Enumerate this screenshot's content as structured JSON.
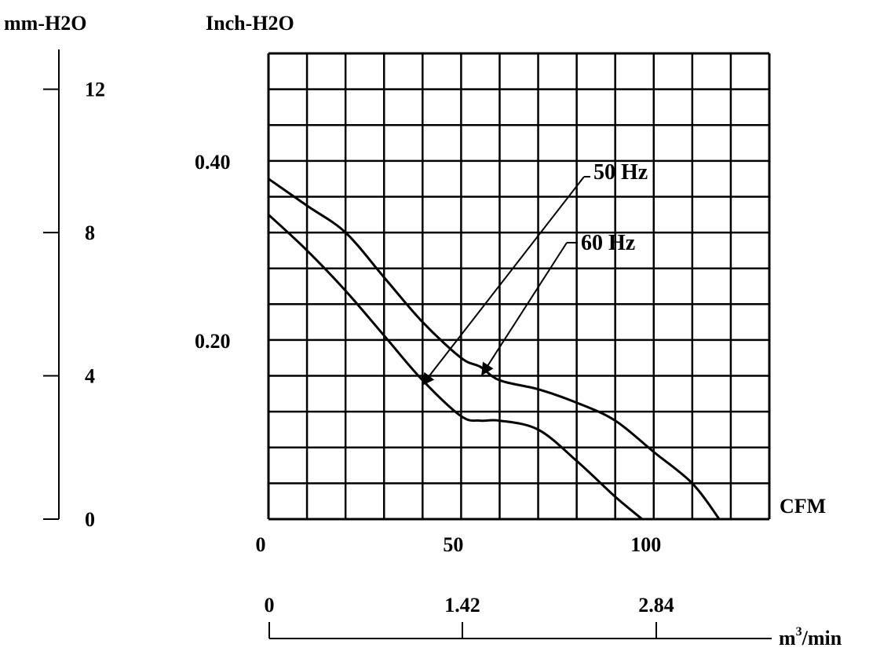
{
  "chart_data": {
    "type": "line",
    "axes": {
      "y_left_outer": {
        "label": "mm-H2O",
        "ticks": [
          "12",
          "8",
          "4",
          "0"
        ],
        "ylim": [
          0,
          13
        ]
      },
      "y_left_inner": {
        "label": "Inch-H2O",
        "ticks": [
          "0.40",
          "0.20"
        ],
        "ylim": [
          0,
          0.52
        ]
      },
      "x_primary": {
        "label": "CFM",
        "ticks": [
          "0",
          "50",
          "100"
        ],
        "xlim": [
          0,
          130
        ]
      },
      "x_secondary": {
        "label": "m3/min",
        "ticks": [
          "0",
          "1.42",
          "2.84"
        ]
      }
    },
    "grid": true,
    "series": [
      {
        "name": "50 Hz",
        "points": [
          [
            0,
            0.38
          ],
          [
            10,
            0.35
          ],
          [
            20,
            0.32
          ],
          [
            30,
            0.27
          ],
          [
            40,
            0.22
          ],
          [
            50,
            0.18
          ],
          [
            55,
            0.17
          ],
          [
            60,
            0.155
          ],
          [
            70,
            0.145
          ],
          [
            80,
            0.13
          ],
          [
            90,
            0.11
          ],
          [
            100,
            0.075
          ],
          [
            110,
            0.04
          ],
          [
            117,
            0.0
          ]
        ]
      },
      {
        "name": "60 Hz",
        "points": [
          [
            0,
            0.34
          ],
          [
            10,
            0.3
          ],
          [
            20,
            0.255
          ],
          [
            30,
            0.205
          ],
          [
            40,
            0.155
          ],
          [
            50,
            0.115
          ],
          [
            55,
            0.11
          ],
          [
            60,
            0.11
          ],
          [
            70,
            0.1
          ],
          [
            80,
            0.065
          ],
          [
            90,
            0.025
          ],
          [
            97,
            0.0
          ]
        ]
      }
    ],
    "annotations": [
      {
        "text": "50 Hz",
        "points_to": "60 Hz"
      },
      {
        "text": "60 Hz",
        "points_to": "50 Hz"
      }
    ]
  }
}
